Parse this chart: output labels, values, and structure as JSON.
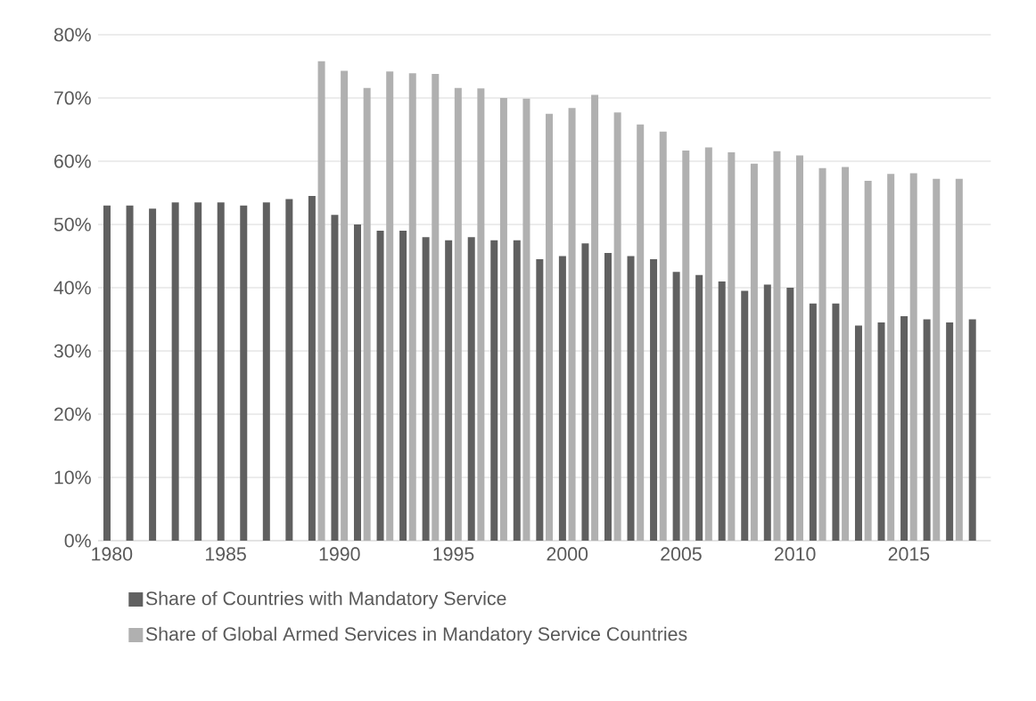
{
  "chart_data": {
    "type": "bar",
    "categories": [
      "1980",
      null,
      null,
      null,
      null,
      "1985",
      null,
      null,
      null,
      null,
      "1990",
      null,
      null,
      null,
      null,
      "1995",
      null,
      null,
      null,
      null,
      "2000",
      null,
      null,
      null,
      null,
      "2005",
      null,
      null,
      null,
      null,
      "2010",
      null,
      null,
      null,
      null,
      "2015",
      null,
      null,
      null
    ],
    "series": [
      {
        "name": "Share of Countries with Mandatory Service",
        "color": "#606060",
        "values": [
          53.0,
          53.0,
          52.5,
          53.5,
          53.5,
          53.5,
          53.0,
          53.5,
          54.0,
          54.5,
          51.5,
          50.0,
          49.0,
          49.0,
          48.0,
          47.5,
          48.0,
          47.5,
          47.5,
          44.5,
          45.0,
          47.0,
          45.5,
          45.0,
          44.5,
          42.5,
          42.0,
          41.0,
          39.5,
          40.5,
          40.0,
          37.5,
          37.5,
          34.0,
          34.5,
          35.5,
          35.0,
          34.5,
          35.0
        ]
      },
      {
        "name": "Share of Global Armed Services in Mandatory Service Countries",
        "color": "#b0b0b0",
        "values": [
          null,
          null,
          null,
          null,
          null,
          null,
          null,
          null,
          null,
          75.8,
          74.3,
          71.6,
          74.2,
          73.9,
          73.8,
          71.6,
          71.5,
          70.0,
          69.9,
          67.5,
          68.4,
          70.5,
          67.7,
          65.8,
          64.7,
          61.7,
          62.2,
          61.4,
          59.6,
          61.6,
          60.9,
          58.9,
          59.1,
          56.9,
          58.0,
          58.1,
          57.2,
          57.2,
          null
        ]
      }
    ],
    "ylim": [
      0,
      80
    ],
    "yticks": [
      {
        "value": 0,
        "label": "0%"
      },
      {
        "value": 10,
        "label": "10%"
      },
      {
        "value": 20,
        "label": "20%"
      },
      {
        "value": 30,
        "label": "30%"
      },
      {
        "value": 40,
        "label": "40%"
      },
      {
        "value": 50,
        "label": "50%"
      },
      {
        "value": 60,
        "label": "60%"
      },
      {
        "value": 70,
        "label": "70%"
      },
      {
        "value": 80,
        "label": "80%"
      }
    ],
    "grid": "y",
    "legend": "bottom"
  }
}
